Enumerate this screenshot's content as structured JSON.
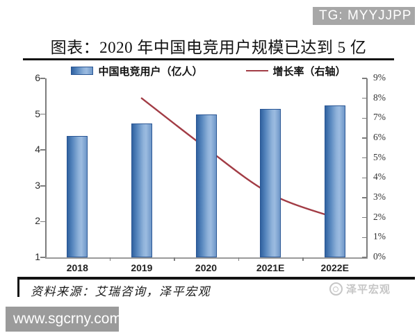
{
  "overlays": {
    "tg_badge": "TG: MYYJJPP",
    "url_badge": "www.sgcrny.com"
  },
  "header": {
    "title": "图表：2020 年中国电竞用户规模已达到 5 亿"
  },
  "legend": {
    "items": [
      {
        "label": "中国电竞用户（亿人）",
        "marker": "bar-swatch"
      },
      {
        "label": "增长率（右轴）",
        "marker": "line-swatch"
      }
    ]
  },
  "footer": {
    "source": "资料来源：艾瑞咨询，泽平宏观",
    "watermark": "泽平宏观"
  },
  "colors": {
    "bar_border": "#2a5694",
    "bar_c1": "#30619f",
    "bar_c2": "#5585bd",
    "bar_c3": "#8fb2da",
    "bar_c4": "#9cbbe0",
    "bar_c5": "#6e97c8",
    "line": "#a23c45",
    "rule": "#121212",
    "badge_bg": "#a7a7a7",
    "url_badge_bg": "#9b9b9b",
    "watermark_gray": "#c6c6c6"
  },
  "chart_data": {
    "type": "bar",
    "title": "图表：2020 年中国电竞用户规模已达到 5 亿",
    "categories": [
      "2018",
      "2019",
      "2020",
      "2021E",
      "2022E"
    ],
    "series": [
      {
        "name": "中国电竞用户（亿人）",
        "type": "bar",
        "axis": "left",
        "values": [
          4.4,
          4.75,
          5.0,
          5.15,
          5.25
        ]
      },
      {
        "name": "增长率（右轴）",
        "type": "line",
        "axis": "right",
        "unit": "percent",
        "values": [
          null,
          8.0,
          5.5,
          3.2,
          2.0
        ]
      }
    ],
    "left_axis": {
      "min": 1,
      "max": 6,
      "ticks": [
        6,
        5,
        4,
        3,
        2,
        1
      ]
    },
    "right_axis": {
      "min": 0,
      "max": 9,
      "ticks": [
        "9%",
        "8%",
        "7%",
        "6%",
        "5%",
        "4%",
        "3%",
        "2%",
        "1%",
        "0%"
      ]
    },
    "grid": false,
    "legend_position": "top",
    "source": "资料来源：艾瑞咨询，泽平宏观"
  }
}
